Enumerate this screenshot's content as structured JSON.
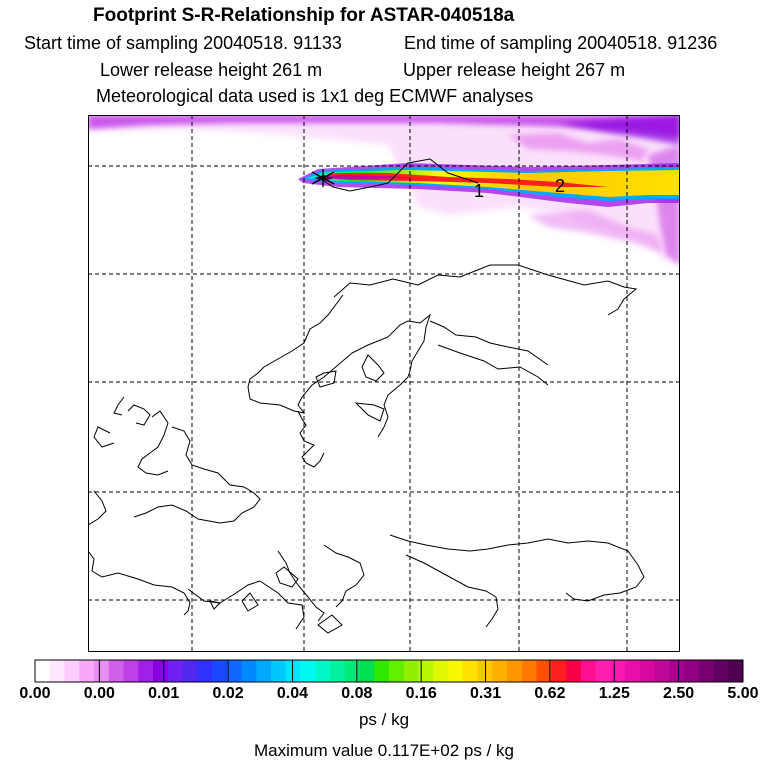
{
  "title": "Footprint S-R-Relationship for ASTAR-040518a",
  "sampling": {
    "start": "Start time of sampling 20040518. 91133",
    "end": "End time of sampling 20040518. 91236"
  },
  "release": {
    "lower": "Lower release height  261 m",
    "upper": "Upper release height  267 m"
  },
  "met_note": "Meteorological data used is 1x1 deg ECMWF analyses",
  "map_labels": {
    "label_1": "1",
    "label_2": "2"
  },
  "colorbar": {
    "tick_labels": [
      "0.00",
      "0.00",
      "0.01",
      "0.02",
      "0.04",
      "0.08",
      "0.16",
      "0.31",
      "0.62",
      "1.25",
      "2.50",
      "5.00"
    ],
    "colors": [
      "#ffffff",
      "#ffe8ff",
      "#ffccff",
      "#f8a8f8",
      "#e890f0",
      "#d060e8",
      "#c040e8",
      "#a020e8",
      "#8800e0",
      "#7020f0",
      "#5028f0",
      "#3030ff",
      "#1848ff",
      "#1068ff",
      "#0088ff",
      "#00a8ff",
      "#00c8ff",
      "#00e4ff",
      "#00f8f0",
      "#00f8c8",
      "#00f0a0",
      "#00e878",
      "#00e050",
      "#30e800",
      "#60f000",
      "#90f000",
      "#b8f800",
      "#e0f800",
      "#f8f800",
      "#ffe000",
      "#ffc800",
      "#ffb000",
      "#ff9800",
      "#ff7800",
      "#ff5000",
      "#ff2020",
      "#f80048",
      "#ff1090",
      "#ff20b0",
      "#f818b0",
      "#e810a8",
      "#d808a0",
      "#c00898",
      "#a80090",
      "#900080",
      "#780070",
      "#600060",
      "#500050"
    ]
  },
  "unit": "ps / kg",
  "max_value": "Maximum value  0.117E+02 ps / kg"
}
